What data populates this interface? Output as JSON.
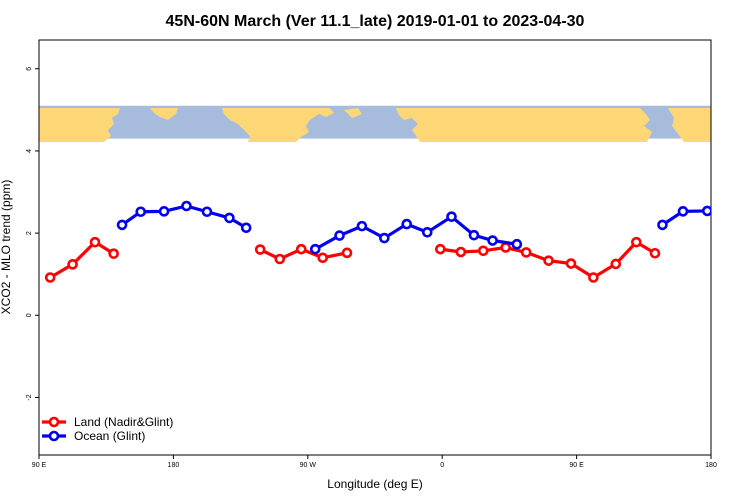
{
  "chart_data": {
    "type": "line",
    "title": "45N-60N March (Ver 11.1_late)   2019-01-01 to 2023-04-30",
    "xlabel": "Longitude (deg E)",
    "ylabel": "XCO2 - MLO trend (ppm)",
    "xlim": [
      90,
      450
    ],
    "ylim": [
      -3.4,
      6.7
    ],
    "x_ticks": [
      {
        "value": 90,
        "label": "90 E"
      },
      {
        "value": 162,
        "label": "180"
      },
      {
        "value": 234,
        "label": "90 W"
      },
      {
        "value": 306,
        "label": "0"
      },
      {
        "value": 378,
        "label": "90 E"
      },
      {
        "value": 450,
        "label": "180"
      }
    ],
    "y_ticks": [
      {
        "value": -2,
        "label": "-2"
      },
      {
        "value": 0,
        "label": "0"
      },
      {
        "value": 2,
        "label": "2"
      },
      {
        "value": 4,
        "label": "4"
      },
      {
        "value": 6,
        "label": "6"
      }
    ],
    "map_band": {
      "y_range": [
        4.3,
        5.1
      ],
      "ocean_color": "#a7bcdc",
      "land_color": "#fdd776"
    },
    "legend_position": "bottom-left",
    "series": [
      {
        "name": "Land (Nadir&Glint)",
        "color": "#ff0000",
        "segments": [
          [
            [
              96,
              0.92
            ],
            [
              108,
              1.24
            ],
            [
              120,
              1.78
            ],
            [
              130,
              1.5
            ]
          ],
          [
            [
              208.5,
              1.6
            ],
            [
              219,
              1.37
            ],
            [
              230.5,
              1.61
            ],
            [
              242,
              1.4
            ],
            [
              255,
              1.52
            ]
          ],
          [
            [
              305,
              1.61
            ],
            [
              316,
              1.54
            ],
            [
              328,
              1.57
            ],
            [
              340,
              1.65
            ],
            [
              351,
              1.53
            ],
            [
              363,
              1.33
            ],
            [
              375,
              1.26
            ],
            [
              387,
              0.92
            ],
            [
              399,
              1.25
            ],
            [
              410,
              1.78
            ],
            [
              420,
              1.51
            ]
          ]
        ]
      },
      {
        "name": "Ocean (Glint)",
        "color": "#0000ee",
        "segments": [
          [
            [
              134.5,
              2.2
            ],
            [
              144.5,
              2.52
            ],
            [
              157,
              2.53
            ],
            [
              169,
              2.66
            ],
            [
              180,
              2.52
            ],
            [
              192,
              2.37
            ],
            [
              201,
              2.13
            ]
          ],
          [
            [
              238,
              1.61
            ],
            [
              251,
              1.94
            ],
            [
              263,
              2.17
            ],
            [
              275,
              1.88
            ],
            [
              287,
              2.22
            ],
            [
              298,
              2.02
            ],
            [
              311,
              2.4
            ],
            [
              323,
              1.95
            ],
            [
              333,
              1.82
            ],
            [
              346,
              1.73
            ]
          ],
          [
            [
              424,
              2.2
            ],
            [
              435,
              2.53
            ],
            [
              448,
              2.54
            ]
          ]
        ]
      }
    ]
  }
}
